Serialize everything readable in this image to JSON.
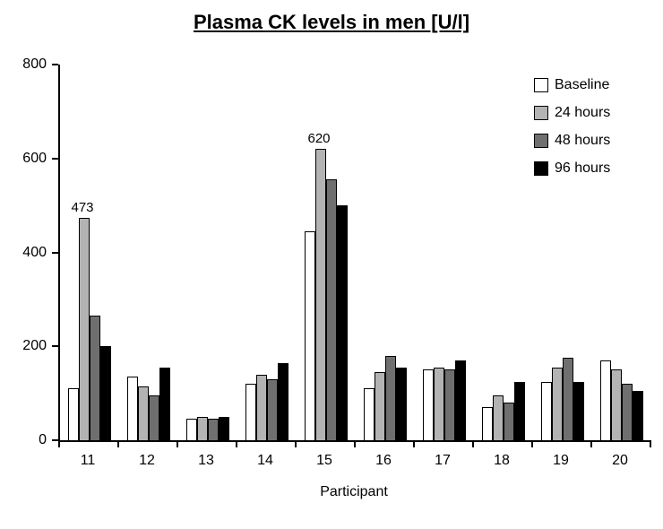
{
  "chart_data": {
    "type": "bar",
    "title": "Plasma CK levels in men [U/l]",
    "xlabel": "Participant",
    "ylabel": "",
    "categories": [
      "11",
      "12",
      "13",
      "14",
      "15",
      "16",
      "17",
      "18",
      "19",
      "20"
    ],
    "series": [
      {
        "name": "Baseline",
        "color": "#ffffff",
        "values": [
          110,
          135,
          45,
          120,
          445,
          110,
          150,
          70,
          125,
          170
        ]
      },
      {
        "name": "24 hours",
        "color": "#b3b3b3",
        "values": [
          473,
          115,
          50,
          140,
          620,
          145,
          155,
          95,
          155,
          150
        ]
      },
      {
        "name": "48 hours",
        "color": "#6f6f6f",
        "values": [
          265,
          95,
          45,
          130,
          555,
          180,
          150,
          80,
          175,
          120
        ]
      },
      {
        "name": "96 hours",
        "color": "#000000",
        "values": [
          200,
          155,
          50,
          165,
          500,
          155,
          170,
          125,
          125,
          105
        ]
      }
    ],
    "ylim": [
      0,
      800
    ],
    "yticks": [
      0,
      200,
      400,
      600,
      800
    ],
    "grid": false,
    "legend_position": "top-right",
    "annotations": [
      {
        "category": "11",
        "series": "24 hours",
        "text": "473"
      },
      {
        "category": "15",
        "series": "24 hours",
        "text": "620"
      }
    ]
  }
}
